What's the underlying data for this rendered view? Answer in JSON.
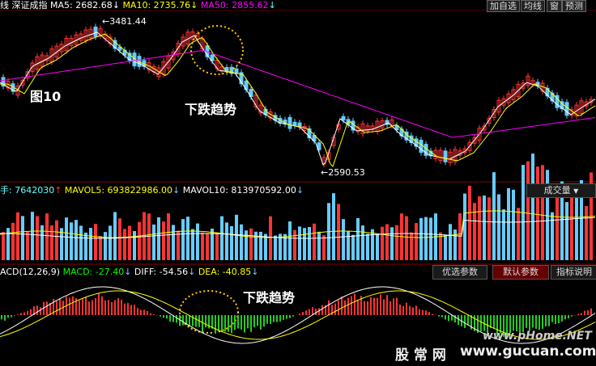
{
  "header": {
    "left_label": "线",
    "index_name": "深证成指",
    "ma5": "MA5: 2682.68",
    "ma10": "MA10: 2735.76",
    "ma50": "MA50: 2855.62",
    "arrow_down": "↓",
    "buttons": [
      "加自选",
      "均线",
      "窗",
      "预测"
    ]
  },
  "price": {
    "high_label": "3481.44",
    "low_label": "2590.53",
    "figure_label": "图10",
    "trend_label": "下跌趋势"
  },
  "volume": {
    "hand": "手: 7642030",
    "mavol5": "MAVOL5: 693822986.00",
    "mavol10": "MAVOL10: 813970592.00",
    "up_arrow": "↑",
    "down_arrow": "↓",
    "dropdown_label": "成交量",
    "dropdown_arrow": "▼"
  },
  "macd": {
    "name": "ACD(12,26,9)",
    "macd": "MACD: -27.40",
    "diff": "DIFF: -54.56",
    "dea": "DEA: -40.85",
    "buttons": [
      "优选参数",
      "默认参数",
      "指标说明"
    ],
    "trend_label": "下跌趋势"
  },
  "watermark": {
    "site1": "www.pHome.NET",
    "site2_cn": "股 常 网",
    "site2_url": "www.gucuan.com"
  },
  "colors": {
    "up": "#ff3333",
    "down": "#66ccff",
    "ma5": "#ffffff",
    "ma10": "#ffff00",
    "ma50": "#ff00ff",
    "accent": "#ffcc00"
  }
}
